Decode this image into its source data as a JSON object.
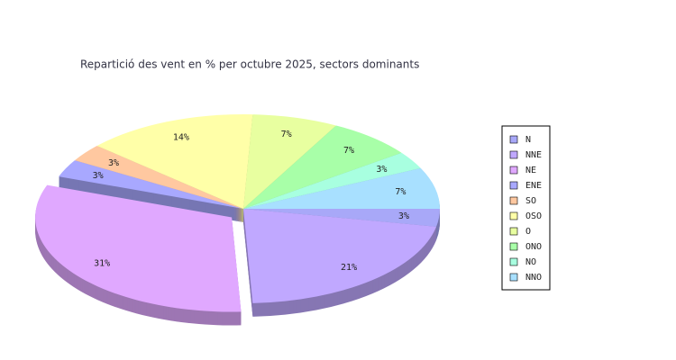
{
  "chart_data": {
    "type": "pie",
    "title": "Repartició des vent en % per octubre 2025, sectors dominants",
    "categories": [
      "N",
      "NNE",
      "NE",
      "ENE",
      "SO",
      "OSO",
      "O",
      "ONO",
      "NO",
      "NNO"
    ],
    "values": [
      3,
      21,
      31,
      3,
      3,
      14,
      7,
      7,
      3,
      7
    ],
    "value_labels": [
      "3%",
      "21%",
      "31%",
      "3%",
      "3%",
      "14%",
      "7%",
      "7%",
      "3%",
      "7%"
    ],
    "colors": [
      "#a8a8f8",
      "#c0a8ff",
      "#e0a8ff",
      "#a8a8ff",
      "#ffc8a0",
      "#ffffa8",
      "#e8ffa0",
      "#a8ffa8",
      "#a8ffe0",
      "#a8e0ff"
    ],
    "exploded": [
      "NE"
    ],
    "legend": "right"
  }
}
